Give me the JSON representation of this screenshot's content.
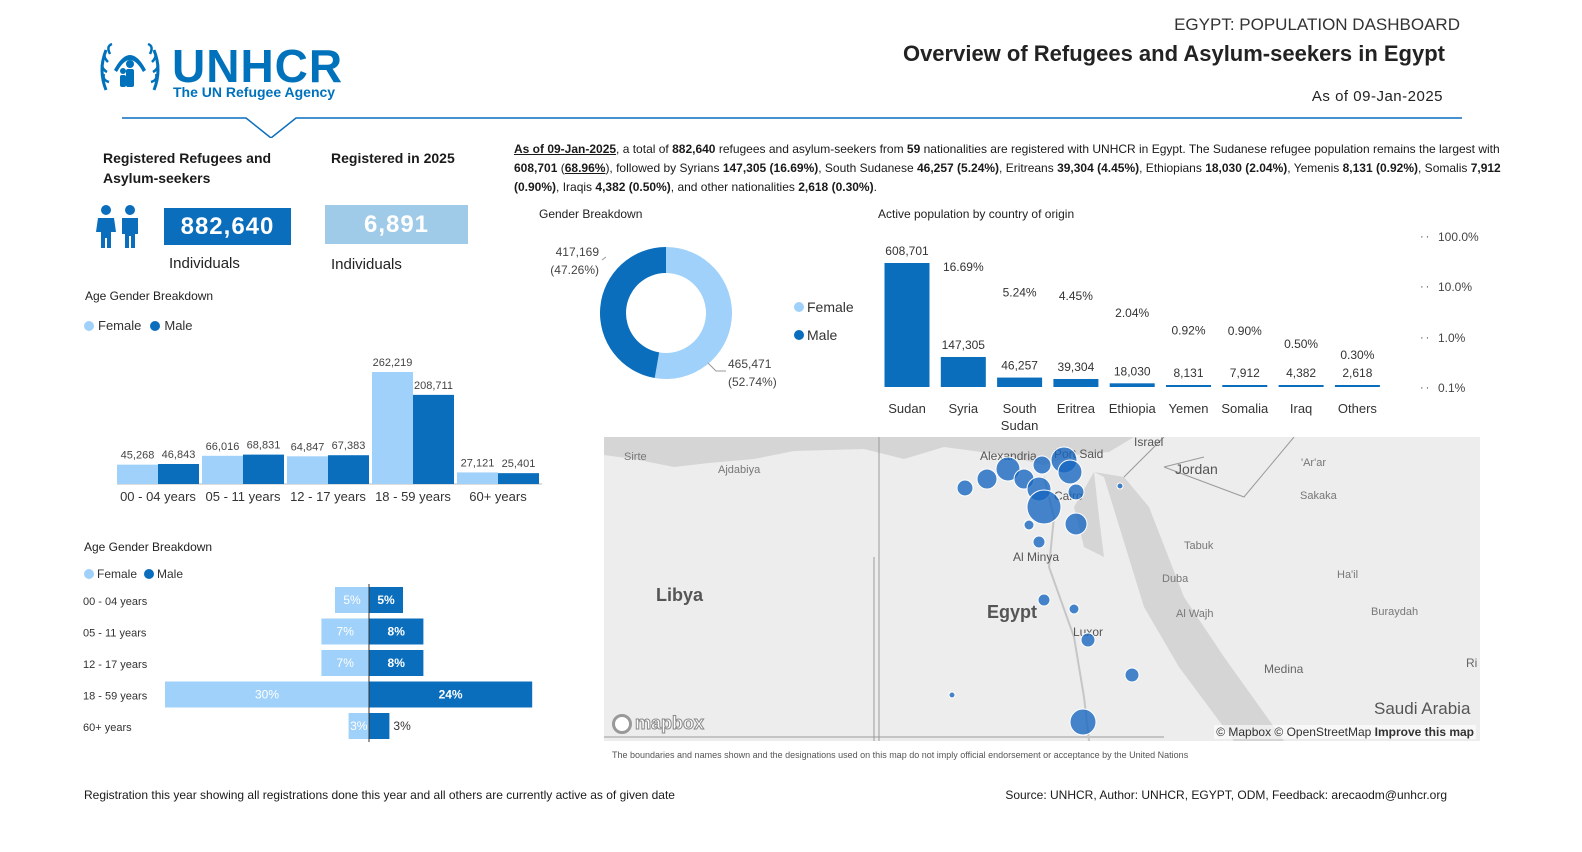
{
  "header": {
    "logo_word": "UNHCR",
    "logo_sub": "The UN Refugee Agency",
    "kicker": "EGYPT: POPULATION DASHBOARD",
    "title": "Overview of Refugees and Asylum-seekers in Egypt",
    "as_of": "As of 09-Jan-2025"
  },
  "kpis": {
    "registered_label": "Registered Refugees and Asylum-seekers",
    "registered_value": "882,640",
    "registered_unit": "Individuals",
    "year_label": "Registered in 2025",
    "year_value": "6,891",
    "year_unit": "Individuals"
  },
  "summary": {
    "p1_date": "As of 09-Jan-2025",
    "p2": ", a total of ",
    "p3_total": "882,640",
    "p4": " refugees and asylum-seekers from ",
    "p5_nat": "59",
    "p6": " nationalities are registered with UNHCR in Egypt. The Sudanese refugee population remains the largest with ",
    "p7": "608,701",
    "p8": " (",
    "p9": "68.96%",
    "p10": "), followed by Syrians ",
    "p11": "147,305 (16.69%)",
    "p12": ", South Sudanese ",
    "p13": "46,257 (5.24%)",
    "p14": ", Eritreans ",
    "p15": "39,304 (4.45%)",
    "p16": ", Ethiopians ",
    "p17": "18,030 (2.04%)",
    "p18": ", Yemenis ",
    "p19": "8,131 (0.92%)",
    "p20": ", Somalis ",
    "p21": "7,912 (0.90%)",
    "p22": ", Iraqis ",
    "p23": "4,382 (0.50%)",
    "p24": ", and other nationalities ",
    "p25": "2,618 (0.30%)",
    "p26": "."
  },
  "legend": {
    "female": "Female",
    "male": "Male"
  },
  "colors": {
    "female": "#a0d1fa",
    "male": "#0a6ebd",
    "navy": "#0a6ebd",
    "light": "#a0cbe8"
  },
  "map": {
    "labels": {
      "sirte": "Sirte",
      "ajdabiya": "Ajdabiya",
      "libya": "Libya",
      "egypt": "Egypt",
      "alexandria": "Alexandria",
      "port_said": "Port Said",
      "cairo": "Cairo",
      "al_minya": "Al Minya",
      "luxor": "Luxor",
      "israel": "Israel",
      "jordan": "Jordan",
      "ar_ar": "'Ar'ar",
      "sakaka": "Sakaka",
      "tabuk": "Tabuk",
      "duba": "Duba",
      "hail": "Ha'il",
      "al_wajh": "Al Wajh",
      "buraydah": "Buraydah",
      "medina": "Medina",
      "ri": "Ri",
      "saudi": "Saudi Arabia"
    },
    "attribution": "© Mapbox © OpenStreetMap",
    "improve": "Improve this map",
    "brand": "mapbox",
    "disclaimer": "The boundaries and names shown and the designations used on this map do not imply official endorsement or acceptance by the United Nations"
  },
  "footer": {
    "left": "Registration this year showing all registrations done this year and all others are currently active as of given date",
    "right": "Source: UNHCR,  Author: UNHCR, EGYPT, ODM, Feedback: arecaodm@unhcr.org"
  },
  "chart_data": [
    {
      "id": "age_gender_bars",
      "type": "bar",
      "title": "Age Gender Breakdown",
      "categories": [
        "00 - 04 years",
        "05 - 11 years",
        "12 - 17 years",
        "18 - 59 years",
        "60+ years"
      ],
      "series": [
        {
          "name": "Female",
          "values": [
            45268,
            66016,
            64847,
            262219,
            27121
          ],
          "labels": [
            "45,268",
            "66,016",
            "64,847",
            "262,219",
            "27,121"
          ]
        },
        {
          "name": "Male",
          "values": [
            46843,
            68831,
            67383,
            208711,
            25401
          ],
          "labels": [
            "46,843",
            "68,831",
            "67,383",
            "208,711",
            "25,401"
          ]
        }
      ]
    },
    {
      "id": "gender_donut",
      "type": "pie",
      "title": "Gender Breakdown",
      "slices": [
        {
          "name": "Female",
          "value": 465471,
          "label_value": "465,471",
          "label_pct": "(52.74%)"
        },
        {
          "name": "Male",
          "value": 417169,
          "label_value": "417,169",
          "label_pct": "(47.26%)"
        }
      ]
    },
    {
      "id": "country_bars",
      "type": "bar",
      "title": "Active population by country of origin",
      "categories": [
        "Sudan",
        "Syria",
        "South Sudan",
        "Eritrea",
        "Ethiopia",
        "Yemen",
        "Somalia",
        "Iraq",
        "Others"
      ],
      "values": [
        608701,
        147305,
        46257,
        39304,
        18030,
        8131,
        7912,
        4382,
        2618
      ],
      "value_labels": [
        "608,701",
        "147,305",
        "46,257",
        "39,304",
        "18,030",
        "8,131",
        "7,912",
        "4,382",
        "2,618"
      ],
      "percent_labels": [
        "",
        "16.69%",
        "5.24%",
        "4.45%",
        "2.04%",
        "0.92%",
        "0.90%",
        "0.50%",
        "0.30%"
      ],
      "secondary_axis": {
        "scale": "log",
        "ticks": [
          "100.0%",
          "10.0%",
          "1.0%",
          "0.1%"
        ]
      }
    },
    {
      "id": "age_gender_pyramid",
      "type": "bar",
      "title": "Age Gender Breakdown",
      "categories": [
        "00 - 04 years",
        "05 - 11 years",
        "12 - 17 years",
        "18 - 59 years",
        "60+ years"
      ],
      "series": [
        {
          "name": "Female",
          "values": [
            5,
            7,
            7,
            30,
            3
          ],
          "labels": [
            "5%",
            "7%",
            "7%",
            "30%",
            "3%"
          ]
        },
        {
          "name": "Male",
          "values": [
            5,
            8,
            8,
            24,
            3
          ],
          "labels": [
            "5%",
            "8%",
            "8%",
            "24%",
            "3%"
          ]
        }
      ]
    }
  ]
}
